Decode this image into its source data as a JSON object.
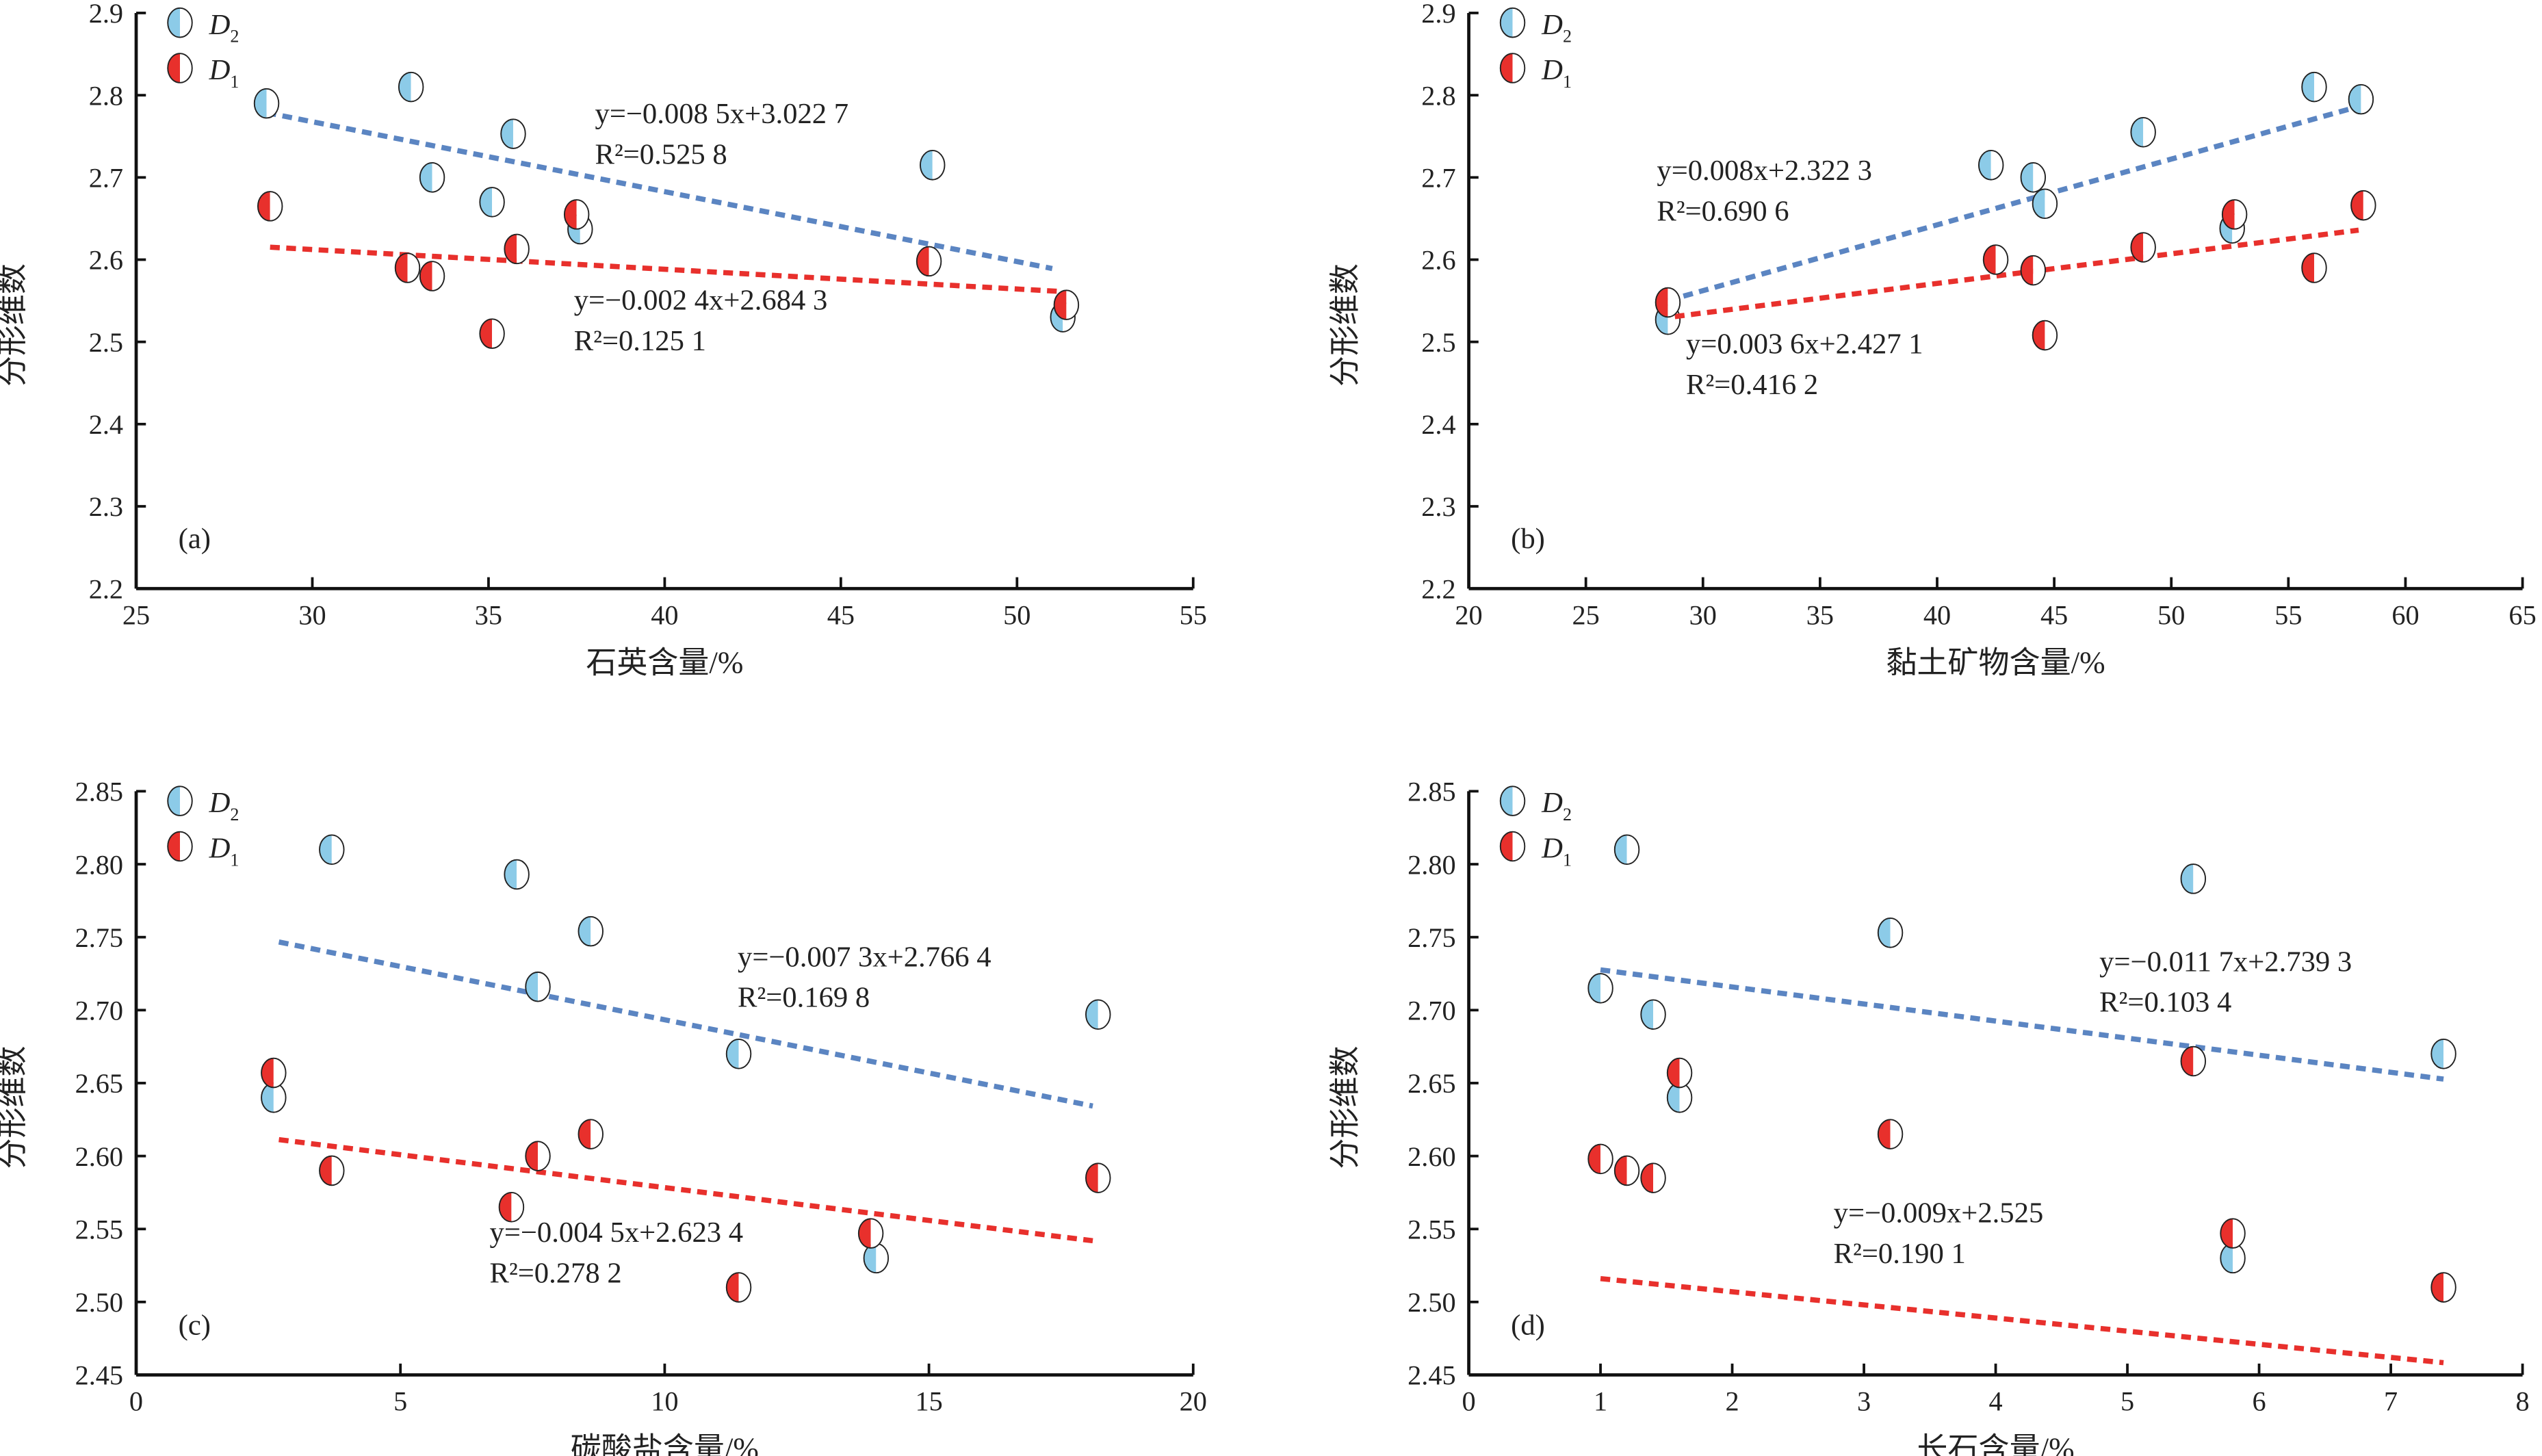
{
  "colors": {
    "D2_fill": "#8ccbe8",
    "D1_fill": "#e8302c",
    "D2_line": "#5b85c2",
    "D1_line": "#e8302c",
    "axis": "#111111"
  },
  "chart_data": [
    {
      "type": "scatter",
      "panel_label": "(a)",
      "xlabel": "石英含量/%",
      "ylabel": "分形维数",
      "xlim": [
        25,
        55
      ],
      "ylim": [
        2.2,
        2.9
      ],
      "xticks": [
        "25",
        "30",
        "35",
        "40",
        "45",
        "50",
        "55"
      ],
      "yticks": [
        "2.2",
        "2.3",
        "2.4",
        "2.5",
        "2.6",
        "2.7",
        "2.8",
        "2.9"
      ],
      "legend_position": "top-left",
      "series": [
        {
          "name": "D2",
          "sub": "2",
          "x": [
            28.7,
            32.8,
            33.4,
            35.1,
            35.7,
            37.6,
            47.6,
            51.3
          ],
          "y": [
            2.79,
            2.81,
            2.7,
            2.67,
            2.753,
            2.637,
            2.715,
            2.53
          ],
          "fit": {
            "slope": -0.0085,
            "intercept": 3.0227,
            "x_range": [
              28.7,
              51.0
            ],
            "equation": "y=−0.008 5x+3.022 7",
            "r2": "R²=0.525 8"
          }
        },
        {
          "name": "D1",
          "sub": "1",
          "x": [
            28.8,
            32.7,
            33.4,
            35.1,
            35.8,
            37.5,
            47.5,
            51.4
          ],
          "y": [
            2.665,
            2.59,
            2.58,
            2.51,
            2.613,
            2.655,
            2.598,
            2.545
          ],
          "fit": {
            "slope": -0.0024,
            "intercept": 2.6843,
            "x_range": [
              28.8,
              51.3
            ],
            "equation": "y=−0.002 4x+2.684 3",
            "r2": "R²=0.125 1"
          }
        }
      ]
    },
    {
      "type": "scatter",
      "panel_label": "(b)",
      "xlabel": "黏土矿物含量/%",
      "ylabel": "分形维数",
      "xlim": [
        20,
        65
      ],
      "ylim": [
        2.2,
        2.9
      ],
      "xticks": [
        "20",
        "25",
        "30",
        "35",
        "40",
        "45",
        "50",
        "55",
        "60",
        "65"
      ],
      "yticks": [
        "2.2",
        "2.3",
        "2.4",
        "2.5",
        "2.6",
        "2.7",
        "2.8",
        "2.9"
      ],
      "legend_position": "top-left",
      "series": [
        {
          "name": "D2",
          "sub": "2",
          "x": [
            28.5,
            42.3,
            44.1,
            44.6,
            48.8,
            52.6,
            56.1,
            58.1
          ],
          "y": [
            2.527,
            2.715,
            2.7,
            2.668,
            2.755,
            2.638,
            2.81,
            2.795
          ],
          "fit": {
            "slope": 0.008,
            "intercept": 2.3223,
            "x_range": [
              28.5,
              58.0
            ],
            "equation": "y=0.008x+2.322 3",
            "r2": "R²=0.690 6"
          }
        },
        {
          "name": "D1",
          "sub": "1",
          "x": [
            28.5,
            42.5,
            44.1,
            44.6,
            48.8,
            52.7,
            56.1,
            58.2
          ],
          "y": [
            2.548,
            2.6,
            2.587,
            2.508,
            2.615,
            2.655,
            2.59,
            2.666
          ],
          "fit": {
            "slope": 0.0036,
            "intercept": 2.4271,
            "x_range": [
              28.8,
              58.0
            ],
            "equation": "y=0.003 6x+2.427 1",
            "r2": "R²=0.416 2"
          }
        }
      ]
    },
    {
      "type": "scatter",
      "panel_label": "(c)",
      "xlabel": "碳酸盐含量/%",
      "ylabel": "分形维数",
      "xlim": [
        0,
        20
      ],
      "ylim": [
        2.45,
        2.85
      ],
      "xticks": [
        "0",
        "5",
        "10",
        "15",
        "20"
      ],
      "yticks": [
        "2.45",
        "2.50",
        "2.55",
        "2.60",
        "2.65",
        "2.70",
        "2.75",
        "2.80",
        "2.85"
      ],
      "legend_position": "top-left",
      "series": [
        {
          "name": "D2",
          "sub": "2",
          "x": [
            2.6,
            3.7,
            7.2,
            7.6,
            8.6,
            11.4,
            14.0,
            18.2
          ],
          "y": [
            2.64,
            2.81,
            2.793,
            2.716,
            2.754,
            2.67,
            2.53,
            2.697
          ],
          "fit": {
            "slope": -0.0073,
            "intercept": 2.7664,
            "x_range": [
              2.7,
              18.1
            ],
            "equation": "y=−0.007 3x+2.766 4",
            "r2": "R²=0.169 8"
          }
        },
        {
          "name": "D1",
          "sub": "1",
          "x": [
            2.6,
            3.7,
            7.1,
            7.6,
            8.6,
            11.4,
            13.9,
            18.2
          ],
          "y": [
            2.657,
            2.59,
            2.565,
            2.6,
            2.615,
            2.51,
            2.547,
            2.585
          ],
          "fit": {
            "slope": -0.0045,
            "intercept": 2.6234,
            "x_range": [
              2.7,
              18.1
            ],
            "equation": "y=−0.004 5x+2.623 4",
            "r2": "R²=0.278 2"
          }
        }
      ]
    },
    {
      "type": "scatter",
      "panel_label": "(d)",
      "xlabel": "长石含量/%",
      "ylabel": "分形维数",
      "xlim": [
        0,
        8
      ],
      "ylim": [
        2.45,
        2.85
      ],
      "xticks": [
        "0",
        "1",
        "2",
        "3",
        "4",
        "5",
        "6",
        "7",
        "8"
      ],
      "yticks": [
        "2.45",
        "2.50",
        "2.55",
        "2.60",
        "2.65",
        "2.70",
        "2.75",
        "2.80",
        "2.85"
      ],
      "legend_position": "top-left",
      "series": [
        {
          "name": "D2",
          "sub": "2",
          "x": [
            1.0,
            1.2,
            1.4,
            1.6,
            3.2,
            5.5,
            5.8,
            7.4
          ],
          "y": [
            2.715,
            2.81,
            2.697,
            2.64,
            2.753,
            2.79,
            2.53,
            2.67
          ],
          "fit": {
            "slope": -0.0117,
            "intercept": 2.7393,
            "x_range": [
              1.0,
              7.4
            ],
            "equation": "y=−0.011 7x+2.739 3",
            "r2": "R²=0.103 4"
          }
        },
        {
          "name": "D1",
          "sub": "1",
          "x": [
            1.0,
            1.2,
            1.4,
            1.6,
            3.2,
            5.5,
            5.8,
            7.4
          ],
          "y": [
            2.598,
            2.59,
            2.585,
            2.657,
            2.615,
            2.665,
            2.547,
            2.51
          ],
          "fit": {
            "slope": -0.009,
            "intercept": 2.525,
            "x_range": [
              1.0,
              7.4
            ],
            "equation": "y=−0.009x+2.525",
            "r2": "R²=0.190 1"
          }
        }
      ]
    }
  ]
}
